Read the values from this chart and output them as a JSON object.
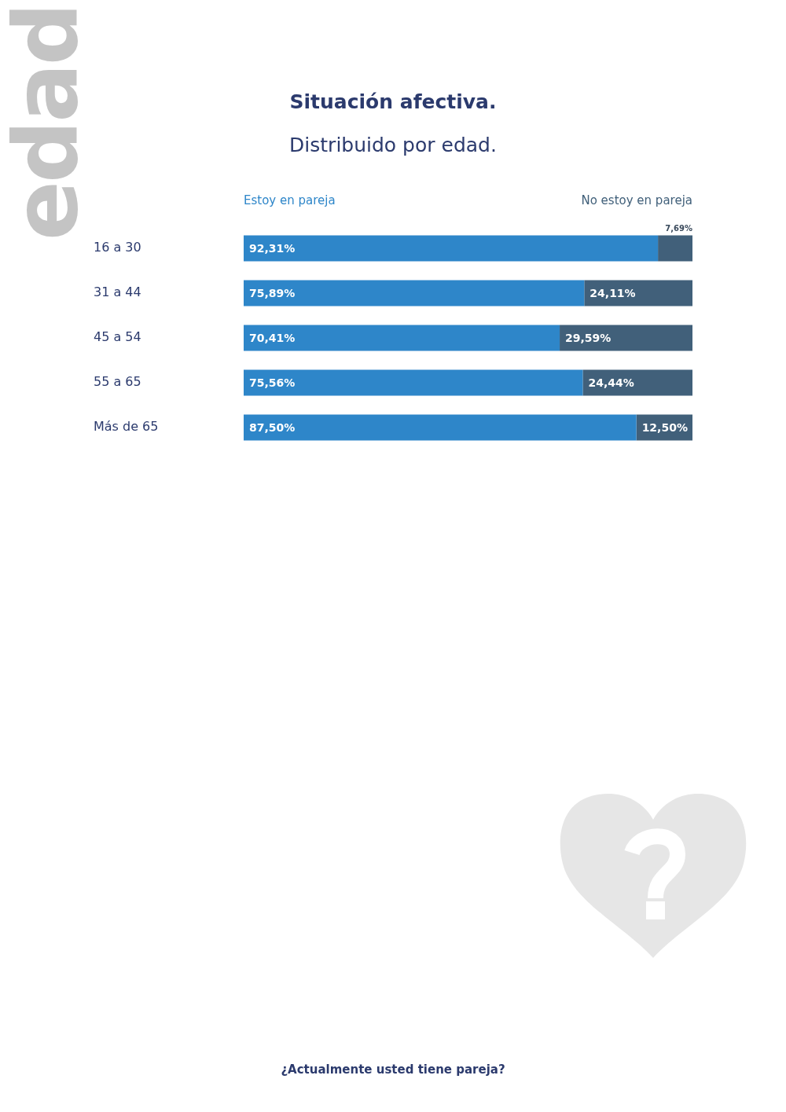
{
  "chart_data": {
    "type": "bar",
    "orientation": "horizontal",
    "stacked": true,
    "title": "Situación afectiva.",
    "subtitle": "Distribuido por edad.",
    "categories": [
      "16 a 30",
      "31 a 44",
      "45 a 54",
      "55 a 65",
      "Más de 65"
    ],
    "series": [
      {
        "name": "Estoy en pareja",
        "color": "#2e86c9",
        "values": [
          92.31,
          75.89,
          70.41,
          75.56,
          87.5
        ],
        "value_labels": [
          "92,31%",
          "75,89%",
          "70,41%",
          "75,56%",
          "87,50%"
        ]
      },
      {
        "name": "No estoy en pareja",
        "color": "#41607a",
        "values": [
          7.69,
          24.11,
          29.59,
          24.44,
          12.5
        ],
        "value_labels": [
          "7,69%",
          "24,11%",
          "29,59%",
          "24,44%",
          "12,50%"
        ]
      }
    ],
    "xlim": [
      0,
      100
    ],
    "tick_labels": "y",
    "grid": false,
    "legend": "top",
    "annotations": [
      "edad",
      "¿Actualmente usted tiene pareja?"
    ]
  }
}
